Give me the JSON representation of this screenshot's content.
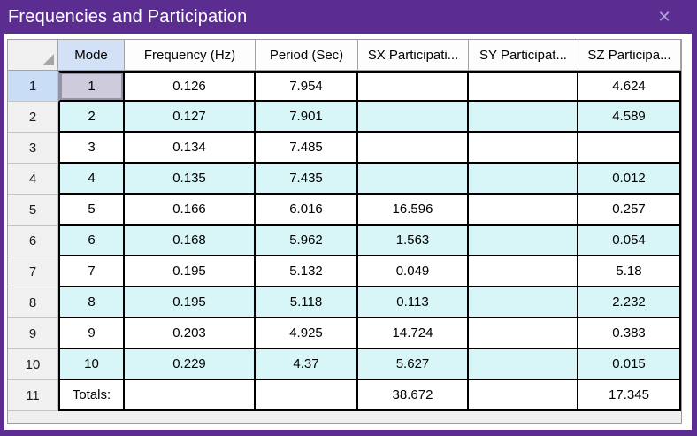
{
  "window": {
    "title": "Frequencies and Participation",
    "close_glyph": "✕"
  },
  "colors": {
    "title_bar": "#5c2d91",
    "window_frame": "#5c2d91",
    "alt_row": "#d8f6f8",
    "selected_cell": "#cecbdd",
    "selected_cell_border": "#9493a3",
    "highlighted_column_header": "#d2e1f5",
    "highlighted_row_header": "#c9ddf6",
    "grid_line": "#000000"
  },
  "table": {
    "columns": [
      "Mode",
      "Frequency (Hz)",
      "Period (Sec)",
      "SX Participati...",
      "SY Participat...",
      "SZ Participa..."
    ],
    "rows": [
      {
        "header": "1",
        "mode": "1",
        "freq": "0.126",
        "period": "7.954",
        "sx": "",
        "sy": "",
        "sz": "4.624"
      },
      {
        "header": "2",
        "mode": "2",
        "freq": "0.127",
        "period": "7.901",
        "sx": "",
        "sy": "",
        "sz": "4.589"
      },
      {
        "header": "3",
        "mode": "3",
        "freq": "0.134",
        "period": "7.485",
        "sx": "",
        "sy": "",
        "sz": ""
      },
      {
        "header": "4",
        "mode": "4",
        "freq": "0.135",
        "period": "7.435",
        "sx": "",
        "sy": "",
        "sz": "0.012"
      },
      {
        "header": "5",
        "mode": "5",
        "freq": "0.166",
        "period": "6.016",
        "sx": "16.596",
        "sy": "",
        "sz": "0.257"
      },
      {
        "header": "6",
        "mode": "6",
        "freq": "0.168",
        "period": "5.962",
        "sx": "1.563",
        "sy": "",
        "sz": "0.054"
      },
      {
        "header": "7",
        "mode": "7",
        "freq": "0.195",
        "period": "5.132",
        "sx": "0.049",
        "sy": "",
        "sz": "5.18"
      },
      {
        "header": "8",
        "mode": "8",
        "freq": "0.195",
        "period": "5.118",
        "sx": "0.113",
        "sy": "",
        "sz": "2.232"
      },
      {
        "header": "9",
        "mode": "9",
        "freq": "0.203",
        "period": "4.925",
        "sx": "14.724",
        "sy": "",
        "sz": "0.383"
      },
      {
        "header": "10",
        "mode": "10",
        "freq": "0.229",
        "period": "4.37",
        "sx": "5.627",
        "sy": "",
        "sz": "0.015"
      },
      {
        "header": "11",
        "mode": "Totals:",
        "freq": "",
        "period": "",
        "sx": "38.672",
        "sy": "",
        "sz": "17.345"
      }
    ]
  }
}
